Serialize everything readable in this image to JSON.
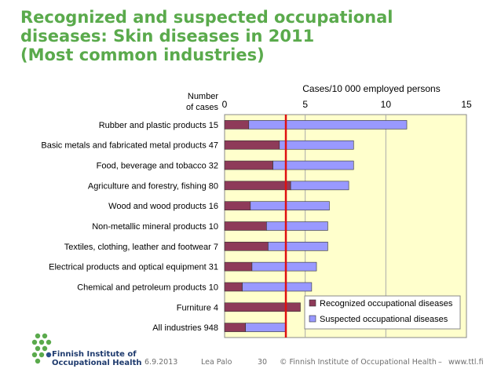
{
  "title": {
    "line1": "Recognized and suspected occupational",
    "line2": "diseases: Skin diseases in 2011",
    "line3": "(Most common industries)"
  },
  "chart_data": {
    "type": "bar",
    "orientation": "horizontal",
    "stacked": true,
    "axis_title_top": "Cases/10 000 employed persons",
    "category_header": [
      "Number",
      "of cases"
    ],
    "xlim": [
      0,
      15
    ],
    "xticks": [
      "0",
      "5",
      "10",
      "15"
    ],
    "grid": true,
    "legend_position": "bottom-right",
    "reference_line": {
      "value": 3.8,
      "color": "#e01010"
    },
    "categories": [
      "Rubber and plastic products 15",
      "Basic metals and fabricated metal products 47",
      "Food, beverage and tobacco 32",
      "Agriculture and forestry, fishing 80",
      "Wood and wood products 16",
      "Non-metallic mineral products 10",
      "Textiles, clothing, leather and footwear 7",
      "Electrical products and optical equipment 31",
      "Chemical and petroleum products 10",
      "Furniture 4",
      "All industries 948"
    ],
    "series": [
      {
        "name": "Recognized occupational diseases",
        "color": "#8e3a59",
        "values": [
          1.5,
          3.4,
          3.0,
          4.1,
          1.6,
          2.6,
          2.7,
          1.7,
          1.1,
          4.7,
          1.3
        ]
      },
      {
        "name": "Suspected occupational diseases",
        "color": "#9999ff",
        "values": [
          9.8,
          4.6,
          5.0,
          3.6,
          4.9,
          3.8,
          3.7,
          4.0,
          4.3,
          0.0,
          2.5
        ]
      }
    ],
    "colors": {
      "plot_background": "#ffffcc",
      "grid": "#aaaaaa",
      "title": "#5aaa4c"
    }
  },
  "footer": {
    "date": "6.9.2013",
    "author": "Lea Palo",
    "page": "30",
    "copyright": "© Finnish Institute of Occupational Health",
    "separator": "–",
    "website": "www.ttl.fi"
  },
  "logo": {
    "line1": "Finnish Institute of",
    "line2": "Occupational Health"
  }
}
